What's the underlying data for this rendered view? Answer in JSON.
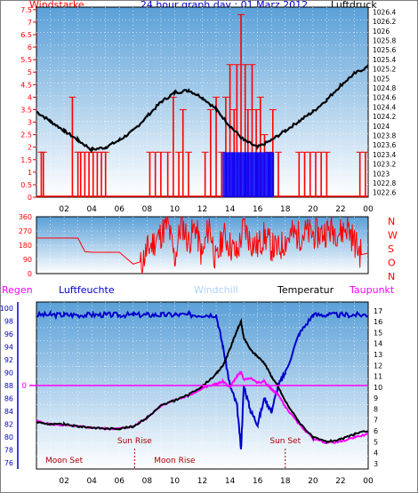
{
  "title": "24 hour graph day : 01 Marz 2012",
  "top_left_label": "Windstarke",
  "top_right_label": "Luftdruck",
  "x_tick_labels": [
    "02",
    "04",
    "06",
    "08",
    "10",
    "12",
    "14",
    "16",
    "18",
    "20",
    "22",
    "00"
  ],
  "colors": {
    "wind": "#ff0000",
    "gust": "#0000ff",
    "pressure": "#000000",
    "direction": "#ff0000",
    "humidity": "#0000cc",
    "temperature": "#000000",
    "dewpoint": "#ff00ff",
    "regen_label": "#ff00ff",
    "windchill_label": "#aad4ff",
    "panel_top": "#5aa0d8",
    "panel_bottom": "#ffffff",
    "frame": "#000000"
  },
  "chart_data": [
    {
      "type": "line",
      "name_ref": "wind_pressure",
      "ylabel_left": "Windstarke",
      "ylabel_right": "Luftdruck",
      "left_ticks": [
        "0",
        "0.5",
        "1",
        "1.5",
        "2",
        "2.5",
        "3",
        "3.5",
        "4",
        "4.5",
        "5",
        "5.5",
        "6",
        "6.5",
        "7",
        "7.5"
      ],
      "right_ticks": [
        "1022.6",
        "1022.8",
        "1023",
        "1023.2",
        "1023.4",
        "1023.6",
        "1023.8",
        "1024",
        "1024.2",
        "1024.4",
        "1024.6",
        "1024.8",
        "1025",
        "1025.2",
        "1025.4",
        "1025.6",
        "1025.8",
        "1026",
        "1026.2",
        "1026.4"
      ],
      "ylim_left": [
        0,
        7.6
      ],
      "ylim_right": [
        1022.5,
        1026.5
      ],
      "x_hours": [
        0,
        1,
        2,
        3,
        4,
        5,
        6,
        7,
        8,
        9,
        10,
        11,
        12,
        13,
        14,
        15,
        16,
        17,
        18,
        19,
        20,
        21,
        22,
        23,
        24
      ],
      "pressure": [
        1024.3,
        1024.1,
        1023.9,
        1023.7,
        1023.5,
        1023.55,
        1023.7,
        1023.9,
        1024.2,
        1024.5,
        1024.7,
        1024.75,
        1024.6,
        1024.35,
        1024.0,
        1023.7,
        1023.55,
        1023.7,
        1023.9,
        1024.1,
        1024.3,
        1024.55,
        1024.85,
        1025.1,
        1025.25
      ],
      "wind_bars": [
        {
          "h": 0.35,
          "v": 1.8
        },
        {
          "h": 0.5,
          "v": 1.8
        },
        {
          "h": 2.6,
          "v": 4.0
        },
        {
          "h": 3.0,
          "v": 1.8
        },
        {
          "h": 3.2,
          "v": 1.8
        },
        {
          "h": 3.5,
          "v": 1.8
        },
        {
          "h": 3.8,
          "v": 1.8
        },
        {
          "h": 4.1,
          "v": 1.8
        },
        {
          "h": 4.4,
          "v": 1.8
        },
        {
          "h": 4.7,
          "v": 1.8
        },
        {
          "h": 5.0,
          "v": 1.8
        },
        {
          "h": 8.2,
          "v": 1.8
        },
        {
          "h": 8.6,
          "v": 1.8
        },
        {
          "h": 9.0,
          "v": 1.8
        },
        {
          "h": 9.5,
          "v": 1.8
        },
        {
          "h": 9.9,
          "v": 4.0
        },
        {
          "h": 10.3,
          "v": 1.8
        },
        {
          "h": 10.6,
          "v": 3.5
        },
        {
          "h": 11.0,
          "v": 1.8
        },
        {
          "h": 12.2,
          "v": 1.8
        },
        {
          "h": 12.6,
          "v": 3.5
        },
        {
          "h": 13.0,
          "v": 4.0
        },
        {
          "h": 13.4,
          "v": 1.8
        },
        {
          "h": 13.7,
          "v": 4.0
        },
        {
          "h": 14.0,
          "v": 5.3
        },
        {
          "h": 14.3,
          "v": 3.5
        },
        {
          "h": 14.5,
          "v": 5.3
        },
        {
          "h": 14.8,
          "v": 7.3
        },
        {
          "h": 15.1,
          "v": 5.3
        },
        {
          "h": 15.3,
          "v": 3.5
        },
        {
          "h": 15.6,
          "v": 5.3
        },
        {
          "h": 15.9,
          "v": 3.5
        },
        {
          "h": 16.2,
          "v": 4.0
        },
        {
          "h": 16.5,
          "v": 2.5
        },
        {
          "h": 16.8,
          "v": 1.8
        },
        {
          "h": 17.1,
          "v": 3.5
        },
        {
          "h": 17.5,
          "v": 1.8
        },
        {
          "h": 19.0,
          "v": 1.8
        },
        {
          "h": 19.4,
          "v": 1.8
        },
        {
          "h": 19.8,
          "v": 1.8
        },
        {
          "h": 20.2,
          "v": 1.8
        },
        {
          "h": 20.6,
          "v": 1.8
        },
        {
          "h": 21.0,
          "v": 1.8
        },
        {
          "h": 23.4,
          "v": 1.8
        },
        {
          "h": 23.8,
          "v": 1.8
        }
      ],
      "gust_range": [
        13.5,
        17.2
      ],
      "gust_value": 1.8
    },
    {
      "type": "line",
      "name_ref": "wind_direction",
      "left_ticks": [
        "0",
        "90",
        "180",
        "270",
        "360"
      ],
      "right_letters": [
        "N",
        "W",
        "S",
        "O",
        "N"
      ],
      "ylim": [
        0,
        360
      ],
      "x_hours": [
        0,
        1,
        2,
        3,
        3.5,
        4,
        5,
        6,
        7,
        7.5,
        8,
        9,
        9.5,
        10,
        10.5,
        11,
        11.5,
        12,
        12.5,
        13,
        13.5,
        14,
        14.5,
        15,
        15.5,
        16,
        16.5,
        17,
        17.5,
        18,
        18.5,
        19,
        19.5,
        20,
        20.5,
        21,
        21.5,
        22,
        22.5,
        23,
        23.5,
        24
      ],
      "direction": [
        225,
        225,
        225,
        225,
        140,
        135,
        135,
        135,
        60,
        45,
        150,
        250,
        320,
        90,
        330,
        200,
        300,
        100,
        320,
        60,
        250,
        180,
        120,
        300,
        200,
        170,
        240,
        170,
        150,
        210,
        250,
        240,
        260,
        250,
        250,
        270,
        280,
        260,
        300,
        200,
        120,
        130
      ]
    },
    {
      "type": "line",
      "name_ref": "humidity_temp",
      "top_labels": [
        "Regen",
        "Luftfeuchte",
        "Windchill",
        "Temperatur",
        "Taupunkt"
      ],
      "left_ticks": [
        "76",
        "78",
        "80",
        "82",
        "84",
        "86",
        "88",
        "90",
        "92",
        "94",
        "96",
        "98",
        "100"
      ],
      "right_ticks": [
        "3",
        "4",
        "5",
        "6",
        "7",
        "8",
        "9",
        "10",
        "11",
        "12",
        "13",
        "14",
        "15",
        "16",
        "17"
      ],
      "rain_tick": "0",
      "ylim_left": [
        75,
        101
      ],
      "ylim_right": [
        2.5,
        17.8
      ],
      "x_hours": [
        0,
        1,
        2,
        3,
        4,
        5,
        6,
        7,
        8,
        9,
        10,
        11,
        12,
        13,
        13.5,
        14,
        14.5,
        14.8,
        15,
        15.5,
        16,
        16.5,
        17,
        17.5,
        18,
        19,
        20,
        21,
        22,
        23,
        24
      ],
      "temperature": [
        6.8,
        6.6,
        6.6,
        6.4,
        6.3,
        6.2,
        6.2,
        6.4,
        7.2,
        8.3,
        8.8,
        9.3,
        10.1,
        11.2,
        12.0,
        13.5,
        15.2,
        16.0,
        14.5,
        13.4,
        12.8,
        12.2,
        11.0,
        10.0,
        8.7,
        6.8,
        5.4,
        5.0,
        5.2,
        5.7,
        6.0
      ],
      "dewpoint": [
        6.9,
        6.6,
        6.5,
        6.4,
        6.3,
        6.2,
        6.2,
        6.4,
        7.2,
        8.3,
        8.8,
        9.2,
        9.9,
        10.3,
        10.5,
        10.0,
        11.0,
        11.4,
        10.7,
        10.8,
        10.4,
        10.5,
        9.8,
        9.3,
        8.2,
        6.6,
        5.3,
        4.9,
        5.0,
        5.4,
        5.7
      ],
      "humidity": [
        99,
        99,
        99,
        99,
        99,
        99,
        99,
        99,
        99,
        99,
        99,
        99,
        99,
        99,
        94,
        88,
        85,
        78,
        88,
        84,
        82,
        86,
        84,
        88,
        90,
        96,
        99,
        99,
        99,
        99,
        99
      ],
      "rain": 0,
      "annotations": [
        {
          "text": "Moon Set",
          "hour": 2.0,
          "row": "bottom"
        },
        {
          "text": "Sun Rise",
          "hour": 7.1,
          "row": "top"
        },
        {
          "text": "Moon Rise",
          "hour": 10.0,
          "row": "bottom"
        },
        {
          "text": "Sun Set",
          "hour": 18.0,
          "row": "top"
        }
      ]
    }
  ]
}
